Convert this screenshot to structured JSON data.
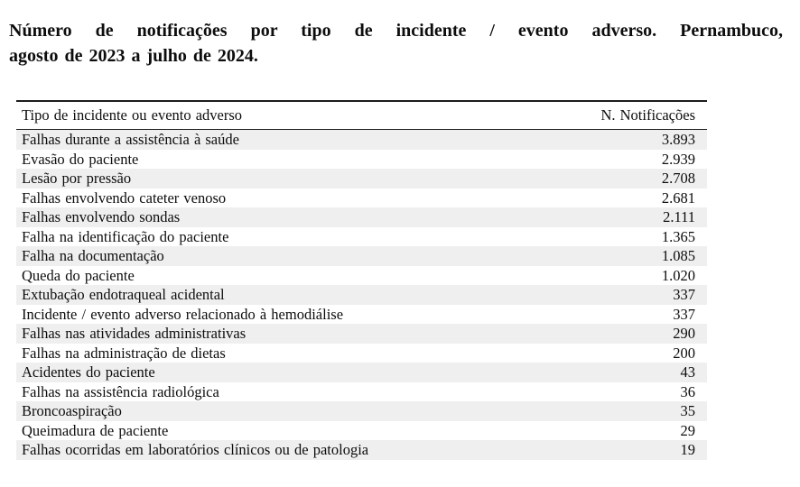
{
  "page": {
    "background": "#ffffff",
    "text_color": "#0d0d0d",
    "stripe_color": "#efefef",
    "rule_color": "#1c1c1c"
  },
  "title": {
    "full": "Número de notificações por tipo de incidente / evento adverso. Pernambuco, agosto de 2023 a julho de 2024.",
    "line1": "Número de notificações por tipo de incidente / evento adverso. Pernambuco,",
    "line2": "agosto de 2023 a julho de 2024."
  },
  "table": {
    "columns": {
      "incident_type": "Tipo de incidente ou evento adverso",
      "notification_count": "N. Notificações"
    },
    "rows": [
      {
        "tipo": "Falhas durante a assistência à saúde",
        "notificacoes": "3.893"
      },
      {
        "tipo": "Evasão do paciente",
        "notificacoes": "2.939"
      },
      {
        "tipo": "Lesão por pressão",
        "notificacoes": "2.708"
      },
      {
        "tipo": "Falhas envolvendo cateter venoso",
        "notificacoes": "2.681"
      },
      {
        "tipo": "Falhas envolvendo sondas",
        "notificacoes": "2.111"
      },
      {
        "tipo": "Falha na identificação do paciente",
        "notificacoes": "1.365"
      },
      {
        "tipo": "Falha na documentação",
        "notificacoes": "1.085"
      },
      {
        "tipo": "Queda do paciente",
        "notificacoes": "1.020"
      },
      {
        "tipo": "Extubação endotraqueal acidental",
        "notificacoes": "337"
      },
      {
        "tipo": "Incidente / evento adverso relacionado à hemodiálise",
        "notificacoes": "337"
      },
      {
        "tipo": "Falhas nas atividades administrativas",
        "notificacoes": "290"
      },
      {
        "tipo": "Falhas na administração de dietas",
        "notificacoes": "200"
      },
      {
        "tipo": "Acidentes do paciente",
        "notificacoes": "43"
      },
      {
        "tipo": "Falhas na assistência radiológica",
        "notificacoes": "36"
      },
      {
        "tipo": "Broncoaspiração",
        "notificacoes": "35"
      },
      {
        "tipo": "Queimadura de paciente",
        "notificacoes": "29"
      },
      {
        "tipo": "Falhas ocorridas em laboratórios clínicos ou de patologia",
        "notificacoes": "19"
      }
    ]
  }
}
